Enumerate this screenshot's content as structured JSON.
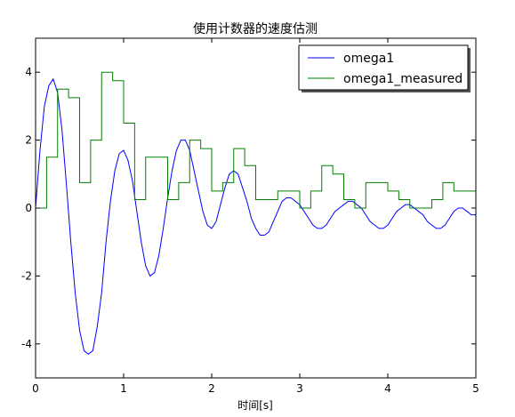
{
  "chart_data": {
    "type": "line",
    "title": "使用计数器的速度估测",
    "xlabel": "时间[s]",
    "ylabel": "",
    "xlim": [
      0,
      5
    ],
    "ylim": [
      -5,
      5
    ],
    "x_ticks": [
      "0",
      "1",
      "2",
      "3",
      "4",
      "5"
    ],
    "y_ticks": [
      "-4",
      "-2",
      "0",
      "2",
      "4"
    ],
    "grid": false,
    "legend_position": "top-right",
    "series": [
      {
        "name": "omega1",
        "color": "#0000ff",
        "style": "line",
        "x": [
          0,
          0.05,
          0.1,
          0.15,
          0.2,
          0.25,
          0.3,
          0.35,
          0.4,
          0.45,
          0.5,
          0.55,
          0.6,
          0.65,
          0.7,
          0.75,
          0.8,
          0.85,
          0.9,
          0.95,
          1.0,
          1.05,
          1.1,
          1.15,
          1.2,
          1.25,
          1.3,
          1.35,
          1.4,
          1.45,
          1.5,
          1.55,
          1.6,
          1.65,
          1.7,
          1.75,
          1.8,
          1.85,
          1.9,
          1.95,
          2.0,
          2.05,
          2.1,
          2.15,
          2.2,
          2.25,
          2.3,
          2.35,
          2.4,
          2.45,
          2.5,
          2.55,
          2.6,
          2.65,
          2.7,
          2.75,
          2.8,
          2.85,
          2.9,
          2.95,
          3.0,
          3.05,
          3.1,
          3.15,
          3.2,
          3.25,
          3.3,
          3.35,
          3.4,
          3.45,
          3.5,
          3.55,
          3.6,
          3.65,
          3.7,
          3.75,
          3.8,
          3.85,
          3.9,
          3.95,
          4.0,
          4.05,
          4.1,
          4.15,
          4.2,
          4.25,
          4.3,
          4.35,
          4.4,
          4.45,
          4.5,
          4.55,
          4.6,
          4.65,
          4.7,
          4.75,
          4.8,
          4.85,
          4.9,
          4.95,
          5.0
        ],
        "y": [
          0.0,
          1.7,
          3.0,
          3.6,
          3.8,
          3.4,
          2.3,
          0.7,
          -1.0,
          -2.5,
          -3.6,
          -4.2,
          -4.3,
          -4.2,
          -3.5,
          -2.5,
          -1.0,
          0.2,
          1.1,
          1.6,
          1.7,
          1.4,
          0.8,
          -0.1,
          -1.0,
          -1.7,
          -2.0,
          -1.9,
          -1.4,
          -0.6,
          0.3,
          1.1,
          1.7,
          2.0,
          2.0,
          1.7,
          1.1,
          0.5,
          -0.1,
          -0.5,
          -0.6,
          -0.4,
          0.1,
          0.6,
          1.0,
          1.1,
          1.0,
          0.6,
          0.2,
          -0.3,
          -0.6,
          -0.8,
          -0.8,
          -0.7,
          -0.4,
          -0.1,
          0.2,
          0.3,
          0.3,
          0.2,
          0.1,
          -0.1,
          -0.3,
          -0.5,
          -0.6,
          -0.6,
          -0.5,
          -0.3,
          -0.1,
          0.0,
          0.1,
          0.2,
          0.2,
          0.1,
          0.0,
          -0.2,
          -0.4,
          -0.5,
          -0.6,
          -0.6,
          -0.5,
          -0.3,
          -0.1,
          0.0,
          0.1,
          0.1,
          0.0,
          -0.1,
          -0.2,
          -0.4,
          -0.5,
          -0.6,
          -0.6,
          -0.5,
          -0.3,
          -0.1,
          0.0,
          0.0,
          -0.1,
          -0.2,
          -0.2
        ]
      },
      {
        "name": "omega1_measured",
        "color": "#008000",
        "style": "step",
        "x": [
          0,
          0.125,
          0.25,
          0.375,
          0.5,
          0.625,
          0.75,
          0.875,
          1.0,
          1.125,
          1.25,
          1.375,
          1.5,
          1.625,
          1.75,
          1.875,
          2.0,
          2.125,
          2.25,
          2.375,
          2.5,
          2.625,
          2.75,
          2.875,
          3.0,
          3.125,
          3.25,
          3.375,
          3.5,
          3.625,
          3.75,
          3.875,
          4.0,
          4.125,
          4.25,
          4.375,
          4.5,
          4.625,
          4.75,
          4.875,
          5.0
        ],
        "y": [
          0,
          1.5,
          3.5,
          3.25,
          0.75,
          2.0,
          4.0,
          3.75,
          2.5,
          0.25,
          1.5,
          1.5,
          0.25,
          0.75,
          2.0,
          1.75,
          0.5,
          0.75,
          1.75,
          1.25,
          0.25,
          0.25,
          0.5,
          0.5,
          0.0,
          0.5,
          1.25,
          1.0,
          0.25,
          0.0,
          0.75,
          0.75,
          0.5,
          0.25,
          0.0,
          0.0,
          0.25,
          0.75,
          0.5,
          0.5,
          0.5
        ]
      }
    ]
  }
}
